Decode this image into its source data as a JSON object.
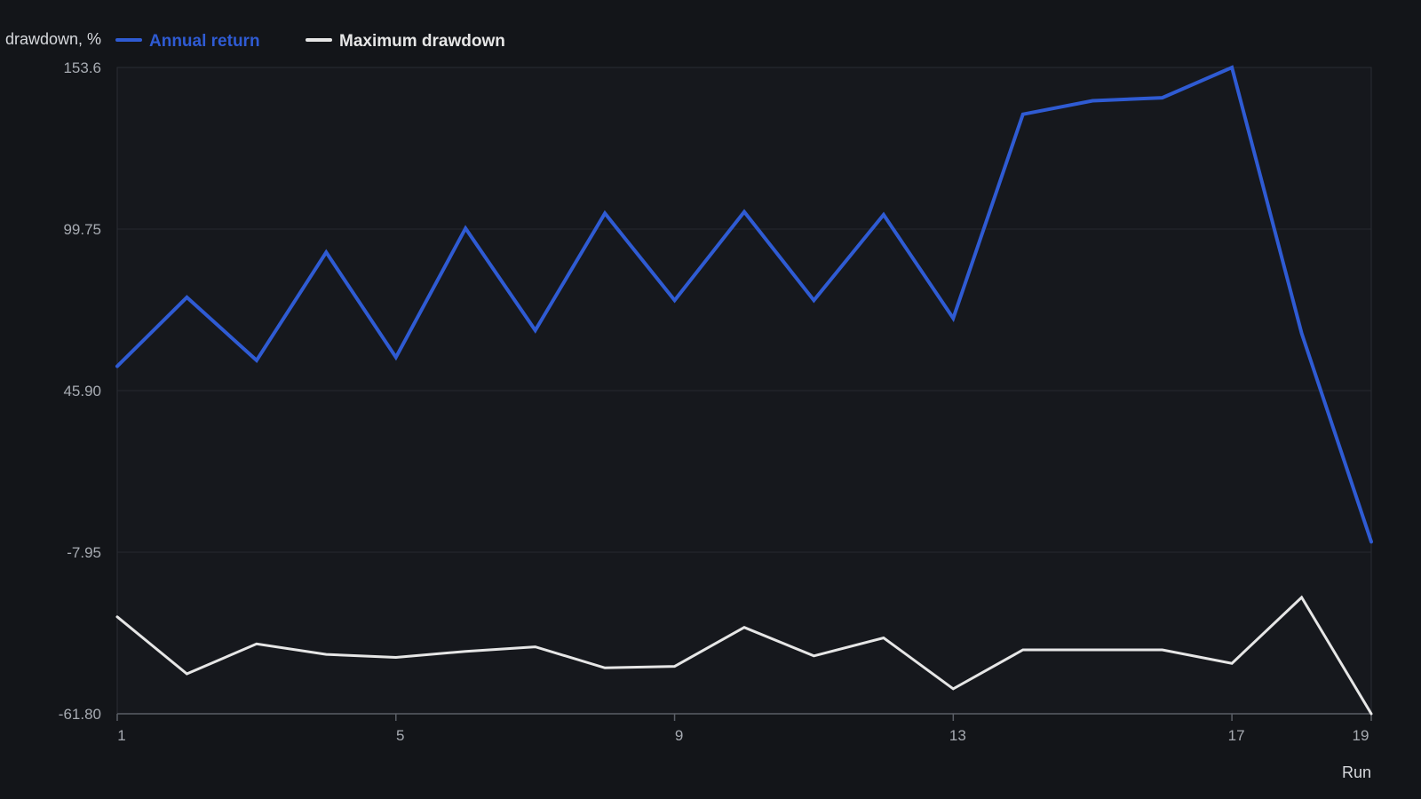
{
  "chart_data": {
    "type": "line",
    "title": "",
    "xlabel": "Run",
    "ylabel": "drawdown, %",
    "x": [
      1,
      2,
      3,
      4,
      5,
      6,
      7,
      8,
      9,
      10,
      11,
      12,
      13,
      14,
      15,
      16,
      17,
      18,
      19
    ],
    "xticks": [
      "1",
      "5",
      "9",
      "13",
      "17",
      "19"
    ],
    "yticks": [
      "153.6",
      "99.75",
      "45.90",
      "-7.95",
      "-61.80"
    ],
    "ylim": [
      -61.8,
      153.6
    ],
    "xlim": [
      1,
      19
    ],
    "grid": true,
    "legend_position": "top-left",
    "series": [
      {
        "name": "Annual return",
        "color": "#2f5bd3",
        "values": [
          54.0,
          77.0,
          56.0,
          92.0,
          57.0,
          100.0,
          66.0,
          105.0,
          76.0,
          105.5,
          76.0,
          104.5,
          70.0,
          138.0,
          142.5,
          143.5,
          153.6,
          65.0,
          -4.5
        ]
      },
      {
        "name": "Maximum drawdown",
        "color": "#e6e6e6",
        "values": [
          -29.5,
          -48.5,
          -38.5,
          -42.0,
          -43.0,
          -41.0,
          -39.5,
          -46.5,
          -46.0,
          -33.0,
          -42.5,
          -36.5,
          -53.5,
          -40.5,
          -40.5,
          -40.5,
          -45.0,
          -23.0,
          -61.8
        ]
      }
    ]
  }
}
